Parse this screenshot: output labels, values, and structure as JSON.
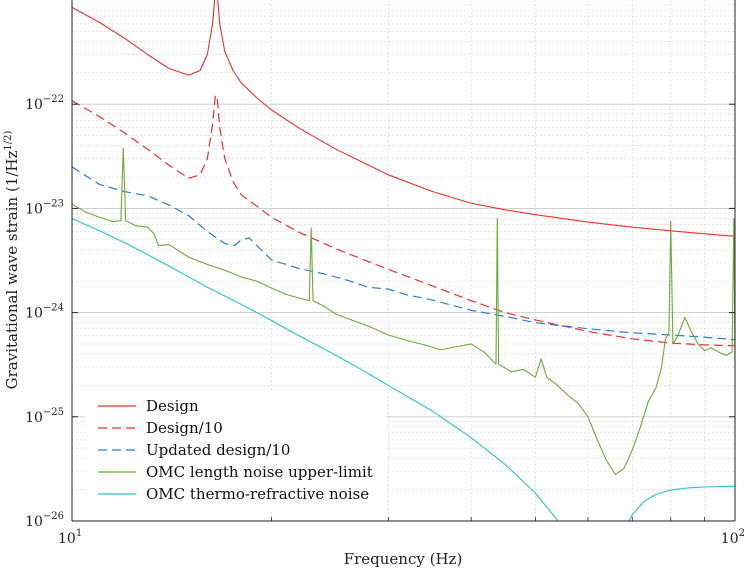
{
  "chart_data": {
    "type": "line",
    "xscale": "log",
    "yscale": "log",
    "xlim": [
      10,
      100
    ],
    "ylim": [
      1e-26,
      1e-21
    ],
    "xlabel": "Frequency (Hz)",
    "ylabel": "Gravitational wave strain (1/Hz^(1/2))",
    "x_ticks": [
      {
        "value": 10,
        "base": "10",
        "exp": "1"
      },
      {
        "value": 100,
        "base": "10",
        "exp": "2"
      }
    ],
    "y_ticks": [
      {
        "value": 1e-26,
        "base": "10",
        "exp": "−26"
      },
      {
        "value": 1e-25,
        "base": "10",
        "exp": "−25"
      },
      {
        "value": 1e-24,
        "base": "10",
        "exp": "−24"
      },
      {
        "value": 1e-23,
        "base": "10",
        "exp": "−23"
      },
      {
        "value": 1e-22,
        "base": "10",
        "exp": "−22"
      }
    ],
    "grid": true,
    "legend_position": "bottom-left",
    "series": [
      {
        "name": "Design",
        "color": "#e8332c",
        "style": "solid",
        "points": [
          [
            10,
            8.5e-22
          ],
          [
            11,
            6.1e-22
          ],
          [
            12,
            4.3e-22
          ],
          [
            13,
            3e-22
          ],
          [
            14,
            2.2e-22
          ],
          [
            15,
            1.9e-22
          ],
          [
            15.6,
            2.1e-22
          ],
          [
            16.0,
            3e-22
          ],
          [
            16.3,
            6e-22
          ],
          [
            16.45,
            1.2e-21
          ],
          [
            16.55,
            1.2e-21
          ],
          [
            16.7,
            6e-22
          ],
          [
            17.0,
            3.2e-22
          ],
          [
            17.5,
            2.1e-22
          ],
          [
            18,
            1.6e-22
          ],
          [
            19,
            1.15e-22
          ],
          [
            20,
            8.8e-23
          ],
          [
            22,
            5.9e-23
          ],
          [
            25,
            3.7e-23
          ],
          [
            30,
            2.1e-23
          ],
          [
            35,
            1.45e-23
          ],
          [
            40,
            1.12e-23
          ],
          [
            45,
            9.7e-24
          ],
          [
            50,
            8.7e-24
          ],
          [
            60,
            7.4e-24
          ],
          [
            70,
            6.6e-24
          ],
          [
            80,
            6.1e-24
          ],
          [
            90,
            5.7e-24
          ],
          [
            100,
            5.4e-24
          ]
        ]
      },
      {
        "name": "Design/10",
        "color": "#e8332c",
        "style": "dashed",
        "points": [
          [
            10,
            1.08e-22
          ],
          [
            11,
            7.6e-23
          ],
          [
            12,
            5.3e-23
          ],
          [
            13,
            3.7e-23
          ],
          [
            14,
            2.6e-23
          ],
          [
            15,
            1.95e-23
          ],
          [
            15.6,
            2.1e-23
          ],
          [
            16.0,
            3e-23
          ],
          [
            16.3,
            6.5e-23
          ],
          [
            16.45,
            1.2e-22
          ],
          [
            16.55,
            1.2e-22
          ],
          [
            16.7,
            6e-23
          ],
          [
            17.0,
            3e-23
          ],
          [
            17.5,
            1.8e-23
          ],
          [
            18,
            1.35e-23
          ],
          [
            19,
            1.05e-23
          ],
          [
            20,
            8.2e-24
          ],
          [
            22,
            5.9e-24
          ],
          [
            25,
            4.1e-24
          ],
          [
            30,
            2.6e-24
          ],
          [
            35,
            1.8e-24
          ],
          [
            40,
            1.3e-24
          ],
          [
            45,
            1e-24
          ],
          [
            50,
            8.5e-25
          ],
          [
            60,
            6.6e-25
          ],
          [
            70,
            5.6e-25
          ],
          [
            80,
            5.1e-25
          ],
          [
            90,
            4.9e-25
          ],
          [
            100,
            4.8e-25
          ]
        ]
      },
      {
        "name": "Updated design/10",
        "color": "#2f7ec9",
        "style": "dashed",
        "points": [
          [
            10,
            2.5e-23
          ],
          [
            11,
            1.7e-23
          ],
          [
            12,
            1.45e-23
          ],
          [
            13,
            1.32e-23
          ],
          [
            14,
            1.08e-23
          ],
          [
            15,
            8.5e-24
          ],
          [
            16,
            6e-24
          ],
          [
            17,
            4.6e-24
          ],
          [
            17.6,
            4.4e-24
          ],
          [
            18,
            5e-24
          ],
          [
            18.5,
            5.2e-24
          ],
          [
            19,
            4.4e-24
          ],
          [
            20,
            3.2e-24
          ],
          [
            22,
            2.65e-24
          ],
          [
            24,
            2.35e-24
          ],
          [
            26,
            2.05e-24
          ],
          [
            28,
            1.75e-24
          ],
          [
            30,
            1.68e-24
          ],
          [
            32,
            1.48e-24
          ],
          [
            35,
            1.32e-24
          ],
          [
            40,
            1.05e-24
          ],
          [
            45,
            9.2e-25
          ],
          [
            50,
            8e-25
          ],
          [
            60,
            7e-25
          ],
          [
            70,
            6.4e-25
          ],
          [
            80,
            6.1e-25
          ],
          [
            90,
            5.8e-25
          ],
          [
            100,
            5.5e-25
          ]
        ]
      },
      {
        "name": "OMC length noise upper-limit",
        "color": "#6eaa3c",
        "style": "solid",
        "points": [
          [
            10,
            1.1e-23
          ],
          [
            10.5,
            9.2e-24
          ],
          [
            11,
            8.2e-24
          ],
          [
            11.5,
            7.5e-24
          ],
          [
            11.85,
            7.6e-24
          ],
          [
            11.95,
            3.8e-23
          ],
          [
            12.05,
            7.6e-24
          ],
          [
            12.5,
            6.8e-24
          ],
          [
            13,
            6.6e-24
          ],
          [
            13.3,
            5.7e-24
          ],
          [
            13.5,
            4.4e-24
          ],
          [
            14,
            4.5e-24
          ],
          [
            15,
            3.4e-24
          ],
          [
            16,
            2.9e-24
          ],
          [
            17,
            2.55e-24
          ],
          [
            18,
            2.2e-24
          ],
          [
            19,
            2e-24
          ],
          [
            20,
            1.72e-24
          ],
          [
            21,
            1.5e-24
          ],
          [
            22,
            1.38e-24
          ],
          [
            22.8,
            1.3e-24
          ],
          [
            22.95,
            6.5e-24
          ],
          [
            23.1,
            1.3e-24
          ],
          [
            24,
            1.15e-24
          ],
          [
            25,
            9.7e-25
          ],
          [
            26,
            8.8e-25
          ],
          [
            28,
            7.4e-25
          ],
          [
            30,
            6.1e-25
          ],
          [
            32,
            5.4e-25
          ],
          [
            34,
            4.9e-25
          ],
          [
            36,
            4.4e-25
          ],
          [
            38,
            4.7e-25
          ],
          [
            40,
            5e-25
          ],
          [
            42,
            4.1e-25
          ],
          [
            43,
            3.5e-25
          ],
          [
            43.6,
            3.2e-25
          ],
          [
            43.8,
            8e-24
          ],
          [
            44.0,
            3.2e-25
          ],
          [
            46,
            2.7e-25
          ],
          [
            48,
            2.85e-25
          ],
          [
            50,
            2.4e-25
          ],
          [
            51,
            3.6e-25
          ],
          [
            52,
            2.4e-25
          ],
          [
            54,
            2e-25
          ],
          [
            56,
            1.6e-25
          ],
          [
            58,
            1.35e-25
          ],
          [
            60,
            1e-25
          ],
          [
            62,
            6e-26
          ],
          [
            64,
            3.8e-26
          ],
          [
            66,
            2.8e-26
          ],
          [
            68,
            3.2e-26
          ],
          [
            70,
            4.8e-26
          ],
          [
            72,
            8e-26
          ],
          [
            74,
            1.4e-25
          ],
          [
            76,
            1.9e-25
          ],
          [
            77.5,
            3e-25
          ],
          [
            78.5,
            5.5e-25
          ],
          [
            79.5,
            6.5e-25
          ],
          [
            80.0,
            7.5e-24
          ],
          [
            80.6,
            5e-25
          ],
          [
            82,
            6e-25
          ],
          [
            84,
            9e-25
          ],
          [
            86,
            6.5e-25
          ],
          [
            88,
            5e-25
          ],
          [
            90,
            4.3e-25
          ],
          [
            92,
            4.6e-25
          ],
          [
            95,
            4.1e-25
          ],
          [
            97,
            3.9e-25
          ],
          [
            99,
            4.2e-25
          ],
          [
            99.6,
            8e-24
          ],
          [
            100,
            3.5e-25
          ]
        ]
      },
      {
        "name": "OMC thermo-refractive noise",
        "color": "#2bc4c8",
        "style": "solid",
        "points": [
          [
            10,
            8e-24
          ],
          [
            11,
            6.1e-24
          ],
          [
            12,
            4.7e-24
          ],
          [
            13,
            3.6e-24
          ],
          [
            14,
            2.8e-24
          ],
          [
            15,
            2.2e-24
          ],
          [
            16,
            1.75e-24
          ],
          [
            18,
            1.2e-24
          ],
          [
            20,
            8.4e-25
          ],
          [
            22,
            6e-25
          ],
          [
            25,
            3.9e-25
          ],
          [
            28,
            2.6e-25
          ],
          [
            30,
            2e-25
          ],
          [
            35,
            1.13e-25
          ],
          [
            40,
            6.3e-26
          ],
          [
            45,
            3.5e-26
          ],
          [
            50,
            1.85e-26
          ],
          [
            55,
            8.8e-27
          ],
          [
            59,
            3e-27
          ]
        ]
      },
      {
        "name": "",
        "color": "#2bc4c8",
        "style": "solid",
        "legend": false,
        "points": [
          [
            67,
            4e-27
          ],
          [
            68,
            8e-27
          ],
          [
            70,
            1.15e-26
          ],
          [
            73,
            1.55e-26
          ],
          [
            76,
            1.8e-26
          ],
          [
            80,
            1.98e-26
          ],
          [
            85,
            2.08e-26
          ],
          [
            90,
            2.12e-26
          ],
          [
            95,
            2.14e-26
          ],
          [
            100,
            2.15e-26
          ]
        ]
      }
    ]
  }
}
